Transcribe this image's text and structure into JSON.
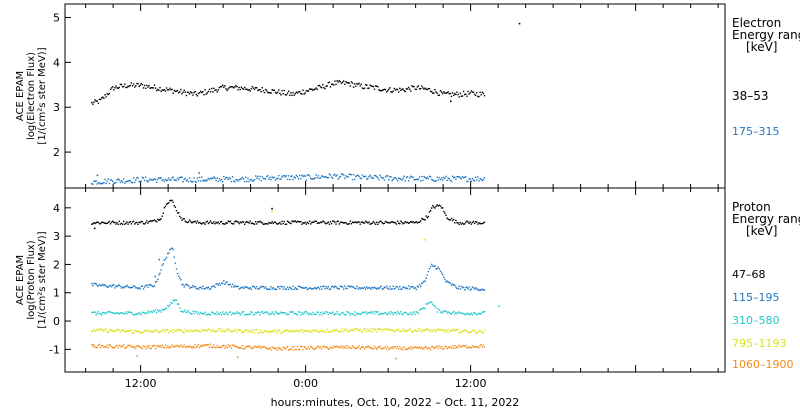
{
  "chart_data": [
    {
      "type": "scatter",
      "panel": "electron",
      "ylabel_lines": [
        "ACE EPAM",
        "log(Electron Flux)",
        "[1/(cm²s ster MeV)]"
      ],
      "ylim": [
        1.2,
        5.3
      ],
      "yticks": [
        2,
        3,
        4,
        5
      ],
      "legend_title": [
        "Electron",
        "Energy range",
        "[keV]"
      ],
      "series": [
        {
          "name": "38–53",
          "color": "#000000",
          "points": [
            [
              -3.6,
              3.1
            ],
            [
              -3,
              3.15
            ],
            [
              -2,
              3.45
            ],
            [
              -1,
              3.5
            ],
            [
              0,
              3.5
            ],
            [
              1,
              3.45
            ],
            [
              2,
              3.4
            ],
            [
              3,
              3.35
            ],
            [
              4,
              3.3
            ],
            [
              5,
              3.38
            ],
            [
              6,
              3.45
            ],
            [
              7,
              3.45
            ],
            [
              8,
              3.42
            ],
            [
              9,
              3.4
            ],
            [
              10,
              3.35
            ],
            [
              11,
              3.3
            ],
            [
              12,
              3.38
            ],
            [
              13,
              3.45
            ],
            [
              14,
              3.55
            ],
            [
              15,
              3.55
            ],
            [
              16,
              3.48
            ],
            [
              17,
              3.45
            ],
            [
              18,
              3.4
            ],
            [
              19,
              3.4
            ],
            [
              20,
              3.45
            ],
            [
              21,
              3.4
            ],
            [
              22,
              3.3
            ],
            [
              23,
              3.3
            ],
            [
              24,
              3.32
            ],
            [
              25,
              3.3
            ]
          ],
          "spikes": [
            [
              22.5,
              3.15
            ],
            [
              27.5,
              4.88
            ]
          ]
        },
        {
          "name": "175–315",
          "color": "#1f77c4",
          "points": [
            [
              -3.6,
              1.35
            ],
            [
              0,
              1.4
            ],
            [
              4,
              1.4
            ],
            [
              8,
              1.42
            ],
            [
              10,
              1.45
            ],
            [
              12,
              1.45
            ],
            [
              14,
              1.48
            ],
            [
              16,
              1.45
            ],
            [
              20,
              1.42
            ],
            [
              25,
              1.42
            ]
          ],
          "spikes": [
            [
              -3.2,
              1.5
            ],
            [
              4.2,
              1.55
            ]
          ]
        }
      ]
    },
    {
      "type": "scatter",
      "panel": "proton",
      "ylabel_lines": [
        "ACE EPAM",
        "log(Proton Flux)",
        "[1/(cm²s ster MeV)]"
      ],
      "ylim": [
        -1.8,
        4.7
      ],
      "yticks": [
        -1,
        0,
        1,
        2,
        3,
        4
      ],
      "legend_title": [
        "Proton",
        "Energy range",
        "[keV]"
      ],
      "series": [
        {
          "name": "47–68",
          "color": "#000000",
          "points": [
            [
              -3.6,
              3.5
            ],
            [
              0,
              3.5
            ],
            [
              1,
              3.55
            ],
            [
              1.5,
              3.7
            ],
            [
              1.8,
              4.2
            ],
            [
              2.2,
              4.3
            ],
            [
              2.5,
              4.0
            ],
            [
              3,
              3.6
            ],
            [
              4,
              3.5
            ],
            [
              6,
              3.5
            ],
            [
              10,
              3.5
            ],
            [
              16,
              3.5
            ],
            [
              20,
              3.5
            ],
            [
              20.8,
              3.7
            ],
            [
              21.2,
              4.05
            ],
            [
              21.8,
              4.1
            ],
            [
              22.2,
              3.7
            ],
            [
              23,
              3.5
            ],
            [
              25,
              3.5
            ]
          ],
          "spikes": [
            [
              9.5,
              4.0
            ],
            [
              -3.4,
              3.3
            ]
          ]
        },
        {
          "name": "115–195",
          "color": "#1f77c4",
          "points": [
            [
              -3.6,
              1.3
            ],
            [
              0,
              1.2
            ],
            [
              1,
              1.3
            ],
            [
              1.4,
              1.8
            ],
            [
              1.9,
              2.4
            ],
            [
              2.3,
              2.6
            ],
            [
              2.6,
              1.8
            ],
            [
              3,
              1.3
            ],
            [
              4,
              1.2
            ],
            [
              5,
              1.2
            ],
            [
              6,
              1.4
            ],
            [
              7,
              1.2
            ],
            [
              10,
              1.2
            ],
            [
              16,
              1.2
            ],
            [
              20,
              1.2
            ],
            [
              20.6,
              1.4
            ],
            [
              21.1,
              2.0
            ],
            [
              21.6,
              1.9
            ],
            [
              22.2,
              1.4
            ],
            [
              23,
              1.2
            ],
            [
              25,
              1.15
            ]
          ],
          "spikes": [
            [
              1.0,
              1.6
            ],
            [
              1.3,
              2.2
            ]
          ]
        },
        {
          "name": "310–580",
          "color": "#22c8cc",
          "points": [
            [
              -3.6,
              0.3
            ],
            [
              0,
              0.3
            ],
            [
              1.5,
              0.4
            ],
            [
              2.1,
              0.6
            ],
            [
              2.5,
              0.8
            ],
            [
              2.9,
              0.4
            ],
            [
              4,
              0.3
            ],
            [
              10,
              0.3
            ],
            [
              20,
              0.3
            ],
            [
              20.6,
              0.5
            ],
            [
              21,
              0.75
            ],
            [
              21.5,
              0.4
            ],
            [
              23,
              0.3
            ],
            [
              25,
              0.3
            ]
          ],
          "spikes": [
            [
              26,
              0.55
            ]
          ]
        },
        {
          "name": "795–1193",
          "color": "#d9e21a",
          "points": [
            [
              -3.6,
              -0.3
            ],
            [
              0,
              -0.35
            ],
            [
              5,
              -0.3
            ],
            [
              10,
              -0.35
            ],
            [
              15,
              -0.3
            ],
            [
              20,
              -0.3
            ],
            [
              25,
              -0.35
            ]
          ],
          "spikes": [
            [
              9.5,
              3.9
            ],
            [
              20.6,
              2.9
            ]
          ]
        },
        {
          "name": "1060–1900",
          "color": "#f08a1c",
          "points": [
            [
              -3.6,
              -0.85
            ],
            [
              0,
              -0.9
            ],
            [
              5,
              -0.85
            ],
            [
              10,
              -0.95
            ],
            [
              15,
              -0.9
            ],
            [
              20,
              -0.95
            ],
            [
              25,
              -0.85
            ]
          ],
          "spikes": [
            [
              -0.3,
              -1.2
            ],
            [
              7,
              -1.25
            ],
            [
              18.5,
              -1.3
            ]
          ]
        }
      ]
    }
  ],
  "x_axis": {
    "xlim": [
      -5.5,
      42.5
    ],
    "tick_labels": [
      {
        "x": 0,
        "label": "12:00"
      },
      {
        "x": 12,
        "label": "0:00"
      },
      {
        "x": 24,
        "label": "12:00"
      }
    ],
    "title": "hours:minutes, Oct. 10, 2022 – Oct. 11, 2022"
  }
}
